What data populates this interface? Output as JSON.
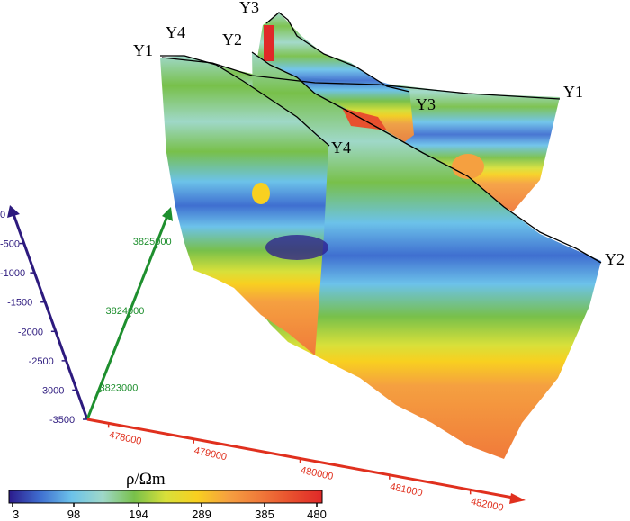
{
  "chart_data": {
    "type": "heatmap",
    "title": "",
    "axes": {
      "elevation": {
        "ticks": [
          "0",
          "-500",
          "-1000",
          "-1500",
          "-2000",
          "-2500",
          "-3000",
          "-3500"
        ],
        "color": "#2d1a7e"
      },
      "northing": {
        "ticks": [
          "3823000",
          "3824000",
          "3825000"
        ],
        "color": "#1e8f2e"
      },
      "easting": {
        "ticks": [
          "478000",
          "479000",
          "480000",
          "481000",
          "482000"
        ],
        "color": "#e0301e"
      }
    },
    "profiles": [
      {
        "name": "Y1",
        "start_label": "Y1",
        "end_label": "Y1"
      },
      {
        "name": "Y2",
        "start_label": "Y2",
        "end_label": "Y2"
      },
      {
        "name": "Y3",
        "start_label": "Y3",
        "end_label": "Y3"
      },
      {
        "name": "Y4",
        "start_label": "Y4",
        "end_label": "Y4"
      }
    ],
    "colorbar": {
      "label": "ρ/Ωm",
      "ticks": [
        "3",
        "98",
        "194",
        "289",
        "385",
        "480"
      ],
      "range": [
        3,
        480
      ],
      "colors": [
        "#2b1a8c",
        "#3f6fd0",
        "#6cc2ea",
        "#9fd8c8",
        "#78c04a",
        "#d8e03a",
        "#f8d020",
        "#f5a040",
        "#f07a3a",
        "#e8502e",
        "#e02828"
      ]
    },
    "resistivity_layers_top_to_bottom": [
      "green",
      "light cyan",
      "green",
      "blue",
      "light blue",
      "green",
      "yellow",
      "orange"
    ]
  }
}
